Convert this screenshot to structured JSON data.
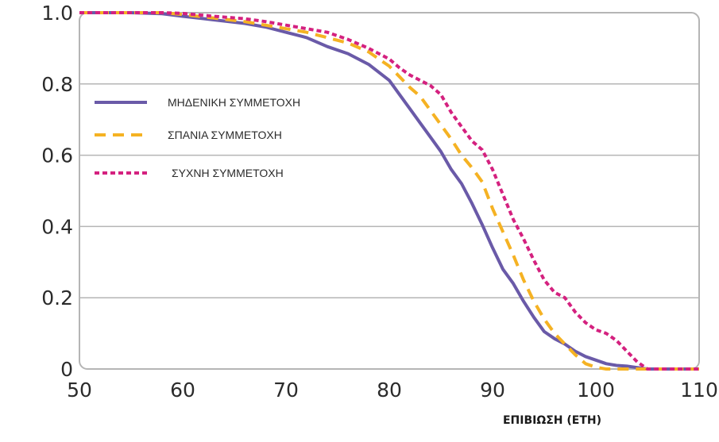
{
  "chart_data": {
    "type": "line",
    "title": "",
    "xlabel": "ΕΠΙΒΙΩΣΗ (ΕΤΗ)",
    "ylabel": "",
    "xlim": [
      50,
      110
    ],
    "ylim": [
      0,
      1
    ],
    "x_ticks": [
      "50",
      "60",
      "70",
      "80",
      "90",
      "100",
      "110"
    ],
    "y_ticks": [
      "0",
      "0.2",
      "0.4",
      "0.6",
      "0.8",
      "1.0"
    ],
    "grid": "horizontal",
    "legend_position": "upper-left",
    "series": [
      {
        "name": "ΜΗΔΕΝΙΚΗ ΣΥΜΜΕΤΟΧΗ",
        "color": "#6a5aa8",
        "style": "solid",
        "points": [
          [
            50,
            1.0
          ],
          [
            55,
            1.0
          ],
          [
            58,
            0.997
          ],
          [
            60,
            0.99
          ],
          [
            63,
            0.98
          ],
          [
            66,
            0.97
          ],
          [
            68,
            0.96
          ],
          [
            70,
            0.945
          ],
          [
            72,
            0.93
          ],
          [
            74,
            0.905
          ],
          [
            76,
            0.885
          ],
          [
            78,
            0.855
          ],
          [
            80,
            0.81
          ],
          [
            81,
            0.77
          ],
          [
            82,
            0.73
          ],
          [
            83,
            0.69
          ],
          [
            84,
            0.65
          ],
          [
            85,
            0.61
          ],
          [
            86,
            0.56
          ],
          [
            87,
            0.52
          ],
          [
            88,
            0.465
          ],
          [
            89,
            0.405
          ],
          [
            90,
            0.34
          ],
          [
            91,
            0.28
          ],
          [
            92,
            0.24
          ],
          [
            93,
            0.19
          ],
          [
            94,
            0.145
          ],
          [
            95,
            0.105
          ],
          [
            96,
            0.085
          ],
          [
            97,
            0.07
          ],
          [
            98,
            0.05
          ],
          [
            99,
            0.035
          ],
          [
            100,
            0.025
          ],
          [
            101,
            0.015
          ],
          [
            102,
            0.01
          ],
          [
            103,
            0.008
          ],
          [
            104,
            0.004
          ],
          [
            105,
            0.0
          ],
          [
            110,
            0.0
          ]
        ]
      },
      {
        "name": "ΣΠΑΝΙΑ ΣΥΜΜΕΤΟΧΗ",
        "color": "#f5b223",
        "style": "dashed",
        "points": [
          [
            50,
            1.0
          ],
          [
            55,
            1.0
          ],
          [
            58,
            1.0
          ],
          [
            60,
            0.995
          ],
          [
            63,
            0.985
          ],
          [
            66,
            0.975
          ],
          [
            68,
            0.965
          ],
          [
            70,
            0.955
          ],
          [
            72,
            0.945
          ],
          [
            74,
            0.93
          ],
          [
            76,
            0.915
          ],
          [
            78,
            0.89
          ],
          [
            80,
            0.85
          ],
          [
            81,
            0.82
          ],
          [
            82,
            0.79
          ],
          [
            83,
            0.765
          ],
          [
            84,
            0.725
          ],
          [
            85,
            0.685
          ],
          [
            86,
            0.645
          ],
          [
            87,
            0.6
          ],
          [
            88,
            0.565
          ],
          [
            89,
            0.525
          ],
          [
            90,
            0.45
          ],
          [
            91,
            0.385
          ],
          [
            92,
            0.32
          ],
          [
            93,
            0.25
          ],
          [
            94,
            0.19
          ],
          [
            95,
            0.14
          ],
          [
            96,
            0.1
          ],
          [
            97,
            0.07
          ],
          [
            98,
            0.04
          ],
          [
            99,
            0.015
          ],
          [
            100,
            0.005
          ],
          [
            101,
            0.0
          ],
          [
            110,
            0.0
          ]
        ]
      },
      {
        "name": "ΣΥΧΝΗ ΣΥΜΜΕΤΟΧΗ",
        "color": "#d4217f",
        "style": "dotted",
        "points": [
          [
            50,
            1.0
          ],
          [
            55,
            1.0
          ],
          [
            58,
            1.0
          ],
          [
            60,
            0.998
          ],
          [
            63,
            0.99
          ],
          [
            66,
            0.983
          ],
          [
            68,
            0.975
          ],
          [
            70,
            0.965
          ],
          [
            72,
            0.955
          ],
          [
            74,
            0.945
          ],
          [
            76,
            0.925
          ],
          [
            78,
            0.9
          ],
          [
            80,
            0.87
          ],
          [
            81,
            0.845
          ],
          [
            82,
            0.825
          ],
          [
            83,
            0.81
          ],
          [
            84,
            0.795
          ],
          [
            85,
            0.77
          ],
          [
            86,
            0.72
          ],
          [
            87,
            0.68
          ],
          [
            88,
            0.64
          ],
          [
            89,
            0.615
          ],
          [
            90,
            0.56
          ],
          [
            91,
            0.49
          ],
          [
            92,
            0.42
          ],
          [
            93,
            0.365
          ],
          [
            94,
            0.305
          ],
          [
            95,
            0.25
          ],
          [
            96,
            0.215
          ],
          [
            97,
            0.2
          ],
          [
            98,
            0.16
          ],
          [
            99,
            0.13
          ],
          [
            100,
            0.11
          ],
          [
            101,
            0.1
          ],
          [
            102,
            0.08
          ],
          [
            103,
            0.05
          ],
          [
            104,
            0.02
          ],
          [
            105,
            0.0
          ],
          [
            110,
            0.0
          ]
        ]
      }
    ]
  }
}
